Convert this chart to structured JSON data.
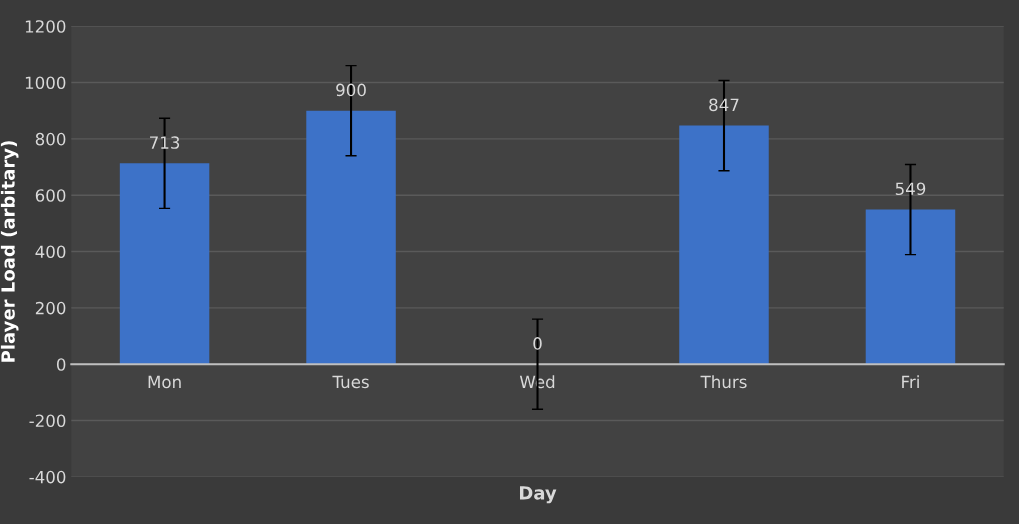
{
  "chart_data": {
    "type": "bar",
    "xlabel": "Day",
    "ylabel": "Player Load (arbitary)",
    "categories": [
      "Mon",
      "Tues",
      "Wed",
      "Thurs",
      "Fri"
    ],
    "values": [
      713,
      900,
      0,
      847,
      549
    ],
    "errors": [
      160,
      160,
      160,
      160,
      160
    ],
    "color": "#3d72c8",
    "ylim": [
      -400,
      1200
    ],
    "yticks": [
      -400,
      -200,
      0,
      200,
      400,
      600,
      800,
      1000,
      1200
    ],
    "grid": "y",
    "data_labels": true
  }
}
